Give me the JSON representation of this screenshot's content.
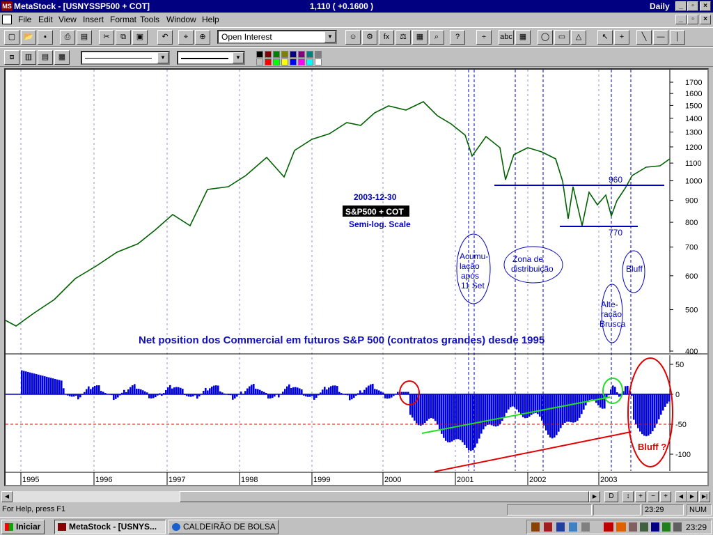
{
  "window": {
    "app_title": "MetaStock - [USNYSSP500 + COT]",
    "quote": "1,110  ( +0.1600 )",
    "period": "Daily",
    "app_icon": "metastock-icon"
  },
  "menu": [
    "File",
    "Edit",
    "View",
    "Insert",
    "Format",
    "Tools",
    "Window",
    "Help"
  ],
  "toolbar": {
    "indicator_select": "Open Interest",
    "line_style_1": "",
    "line_style_2": "",
    "palette": [
      "#000000",
      "#800000",
      "#008000",
      "#808000",
      "#000080",
      "#800080",
      "#008080",
      "#808080",
      "#c0c0c0",
      "#ff0000",
      "#00ff00",
      "#ffff00",
      "#0000ff",
      "#ff00ff",
      "#00ffff",
      "#ffffff"
    ]
  },
  "price_axis": [
    "1700",
    "1600",
    "1500",
    "1400",
    "1300",
    "1200",
    "1100",
    "1000",
    "900",
    "800",
    "700",
    "600",
    "500",
    "400"
  ],
  "cot_axis": [
    "50",
    "0",
    "-50",
    "-100"
  ],
  "year_labels": [
    "1995",
    "1996",
    "1997",
    "1998",
    "1999",
    "2000",
    "2001",
    "2002",
    "2003"
  ],
  "annotations": {
    "date": "2003-12-30",
    "title_box": "S&P500 + COT",
    "scale": "Semi-log. Scale",
    "acumulacao": [
      "Acumu-",
      "lação",
      "após",
      "11 Set"
    ],
    "zona": [
      "Zona de",
      "distribuição"
    ],
    "bluff_top": "Bluff",
    "alteracao": [
      "Alte-",
      "ração",
      "Brusca"
    ],
    "level_960": "960",
    "level_770": "770",
    "net_position": "Net position dos Commercial em futuros S&P 500 (contratos grandes) desde 1995",
    "bluff_bottom": "Bluff ?"
  },
  "status": {
    "help": "For Help, press F1",
    "time": "23:29",
    "num": "NUM"
  },
  "scroll_buttons": [
    "D",
    "↕",
    "+",
    "−",
    "+"
  ],
  "taskbar": {
    "start": "Iniciar",
    "items": [
      "MetaStock - [USNYS...",
      "CALDEIRÃO DE BOLSA :..."
    ],
    "clock": "23:29"
  }
}
